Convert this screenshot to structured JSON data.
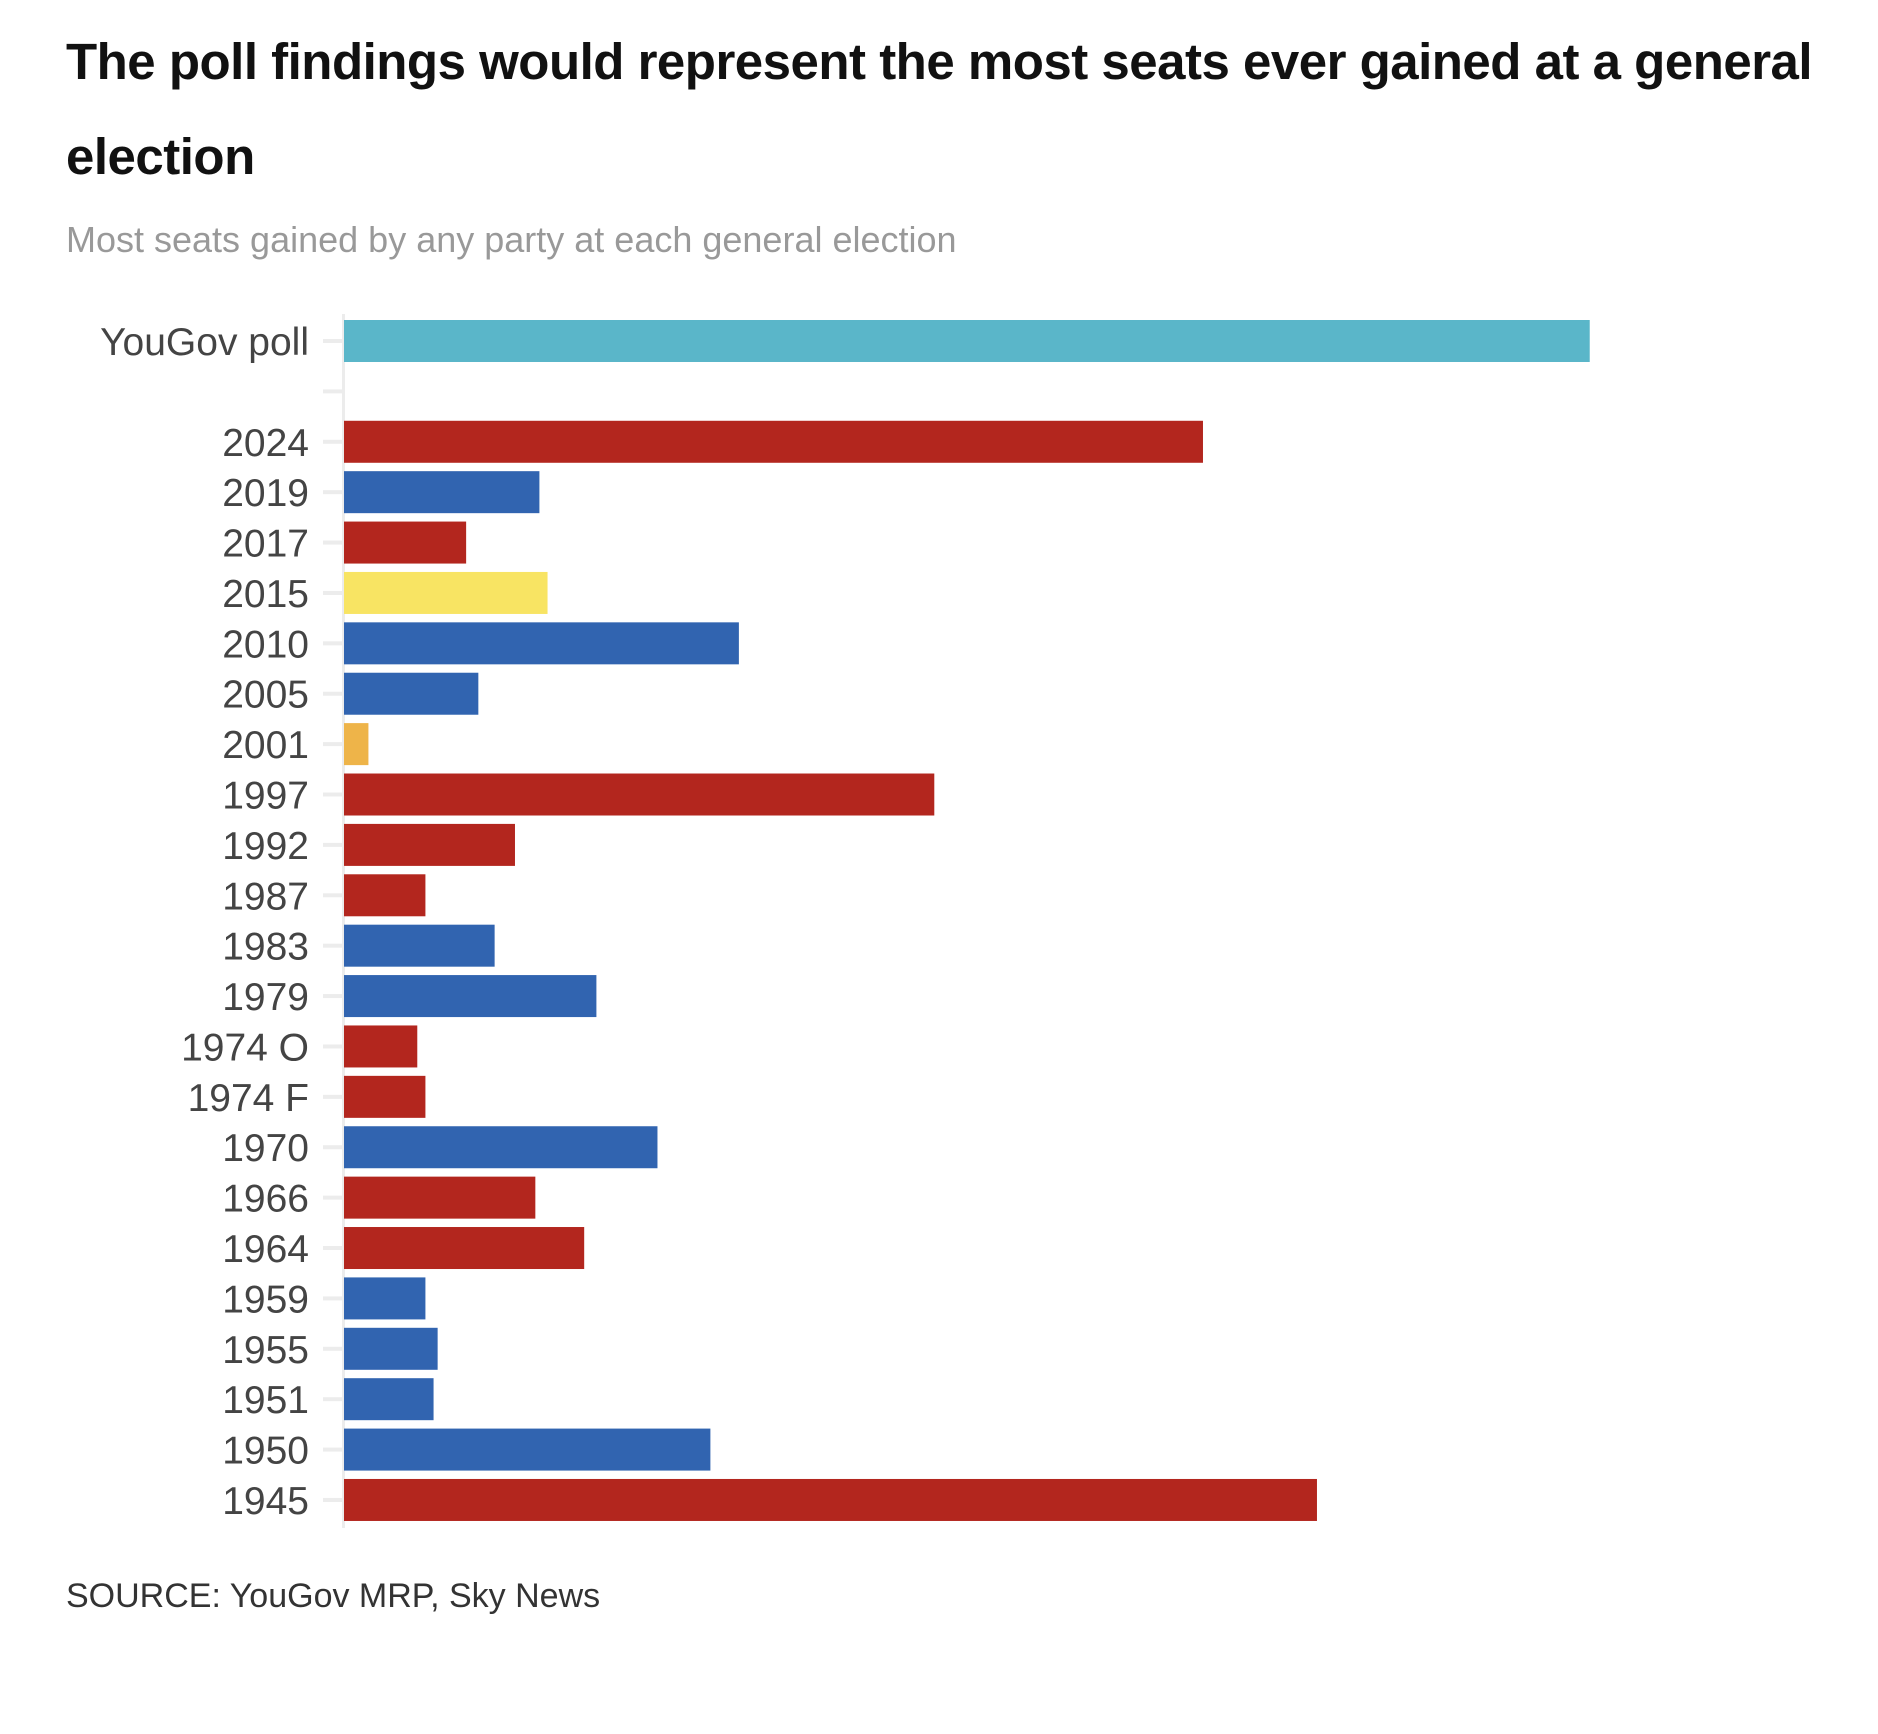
{
  "title": "The poll findings would represent the most seats ever gained at a general election",
  "subtitle": "Most seats gained by any party at each general election",
  "source": "SOURCE: YouGov MRP, Sky News",
  "party_colors": {
    "labour": "#b3261e",
    "conservative": "#3164b0",
    "snp": "#f8e463",
    "libdem": "#eeb449",
    "poll": "#5ab6c9"
  },
  "chart_data": {
    "type": "bar",
    "orientation": "horizontal",
    "title": "The poll findings would represent the most seats ever gained at a general election",
    "subtitle": "Most seats gained by any party at each general election",
    "xlabel": "",
    "ylabel": "",
    "xlim": [
      0,
      320
    ],
    "grid": false,
    "x_axis_visible": false,
    "categories": [
      "YouGov poll",
      "",
      "2024",
      "2019",
      "2017",
      "2015",
      "2010",
      "2005",
      "2001",
      "1997",
      "1992",
      "1987",
      "1983",
      "1979",
      "1974 O",
      "1974 F",
      "1970",
      "1966",
      "1964",
      "1959",
      "1955",
      "1951",
      "1950",
      "1945"
    ],
    "values": [
      306,
      null,
      211,
      48,
      30,
      50,
      97,
      33,
      6,
      145,
      42,
      20,
      37,
      62,
      18,
      20,
      77,
      47,
      59,
      20,
      23,
      22,
      90,
      239
    ],
    "parties": [
      "poll",
      null,
      "labour",
      "conservative",
      "labour",
      "snp",
      "conservative",
      "conservative",
      "libdem",
      "labour",
      "labour",
      "labour",
      "conservative",
      "conservative",
      "labour",
      "labour",
      "conservative",
      "labour",
      "labour",
      "conservative",
      "conservative",
      "conservative",
      "conservative",
      "labour"
    ],
    "source": "SOURCE: YouGov MRP, Sky News"
  }
}
